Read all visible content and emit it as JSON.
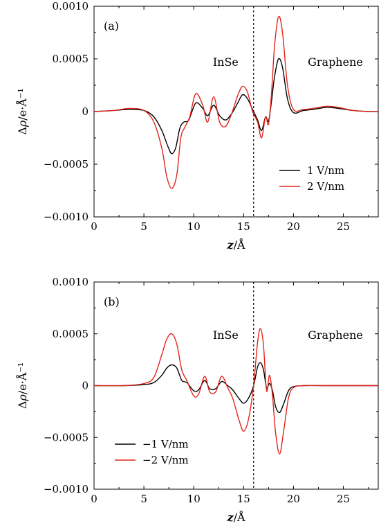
{
  "chart_data": [
    {
      "type": "line",
      "panel_label": "(a)",
      "xlabel": "z/Å",
      "ylabel": "Δρ/e·Å⁻¹",
      "xlim": [
        0,
        28.5
      ],
      "ylim": [
        -0.001,
        0.001
      ],
      "x_ticks": [
        0,
        5,
        10,
        15,
        20,
        25
      ],
      "x_tick_labels": [
        "0",
        "5",
        "10",
        "15",
        "20",
        "25"
      ],
      "y_ticks": [
        -0.001,
        -0.0005,
        0,
        0.0005,
        0.001
      ],
      "y_tick_labels": [
        "−0.0010",
        "−0.0005",
        "0",
        "0.0005",
        "0.0010"
      ],
      "interface_x": 16,
      "region_labels": [
        "InSe",
        "Graphene"
      ],
      "legend_position": "bottom-right",
      "series": [
        {
          "name": "1 V/nm",
          "color": "#000000",
          "x": [
            0,
            2,
            3.5,
            5,
            6,
            6.8,
            7.4,
            7.8,
            8.2,
            8.6,
            9,
            9.5,
            10.2,
            10.9,
            11.4,
            12,
            12.6,
            13.2,
            13.8,
            14.4,
            14.9,
            15.4,
            15.9,
            16.4,
            16.8,
            17.2,
            17.5,
            17.8,
            18.1,
            18.5,
            18.9,
            19.4,
            20,
            21,
            22,
            23.3,
            24.5,
            26,
            27.5,
            28.5
          ],
          "y": [
            0,
            1e-05,
            2e-05,
            1e-05,
            -5e-05,
            -0.00018,
            -0.00033,
            -0.0004,
            -0.00034,
            -0.00016,
            -0.0001,
            -8e-05,
            8e-05,
            3e-05,
            -4e-05,
            6e-05,
            -4e-05,
            -8e-05,
            -2e-05,
            8e-05,
            0.00016,
            0.00012,
            2e-05,
            -8e-05,
            -0.00018,
            -5e-05,
            -9e-05,
            0.0001,
            0.00033,
            0.0005,
            0.00042,
            0.00012,
            -1e-05,
            1e-05,
            2e-05,
            4e-05,
            3e-05,
            1e-05,
            0,
            0
          ]
        },
        {
          "name": "2 V/nm",
          "color": "#e3241b",
          "x": [
            0,
            2,
            3.5,
            5,
            6,
            6.8,
            7.3,
            7.8,
            8.3,
            8.7,
            9.1,
            9.6,
            10.2,
            10.9,
            11.4,
            12,
            12.6,
            13.2,
            13.8,
            14.4,
            14.9,
            15.4,
            15.9,
            16.4,
            16.8,
            17.2,
            17.5,
            17.8,
            18.1,
            18.5,
            18.9,
            19.4,
            20,
            21,
            22,
            23.3,
            24.5,
            26,
            27.5,
            28.5
          ],
          "y": [
            0,
            1e-05,
            3e-05,
            1e-05,
            -0.0001,
            -0.00035,
            -0.00062,
            -0.00073,
            -0.0006,
            -0.00025,
            -0.00015,
            -5e-05,
            0.00017,
            6e-05,
            -0.0001,
            0.00014,
            -0.0001,
            -0.00014,
            -2e-05,
            0.00015,
            0.00024,
            0.00018,
            0,
            -0.0001,
            -0.00025,
            -5e-05,
            -0.00012,
            0.00018,
            0.00062,
            0.0009,
            0.00075,
            0.00025,
            2e-05,
            2e-05,
            3e-05,
            5e-05,
            4e-05,
            1e-05,
            0,
            0
          ]
        }
      ]
    },
    {
      "type": "line",
      "panel_label": "(b)",
      "xlabel": "z/Å",
      "ylabel": "Δρ/e·Å⁻¹",
      "xlim": [
        0,
        28.5
      ],
      "ylim": [
        -0.001,
        0.001
      ],
      "x_ticks": [
        0,
        5,
        10,
        15,
        20,
        25
      ],
      "x_tick_labels": [
        "0",
        "5",
        "10",
        "15",
        "20",
        "25"
      ],
      "y_ticks": [
        -0.001,
        -0.0005,
        0,
        0.0005,
        0.001
      ],
      "y_tick_labels": [
        "−0.0010",
        "−0.0005",
        "0",
        "0.0005",
        "0.0010"
      ],
      "interface_x": 16,
      "region_labels": [
        "InSe",
        "Graphene"
      ],
      "legend_position": "bottom-left",
      "series": [
        {
          "name": "−1 V/nm",
          "color": "#000000",
          "x": [
            0,
            3,
            5,
            6,
            6.8,
            7.3,
            7.8,
            8.3,
            8.8,
            9.3,
            10,
            10.5,
            11.1,
            11.6,
            12.2,
            12.8,
            13.4,
            13.9,
            14.5,
            15,
            15.5,
            16,
            16.4,
            16.7,
            17,
            17.3,
            17.6,
            17.9,
            18.2,
            18.6,
            19,
            19.5,
            20,
            21,
            23,
            25,
            28.5
          ],
          "y": [
            0,
            0,
            1e-05,
            3e-05,
            0.0001,
            0.00017,
            0.0002,
            0.00017,
            5e-05,
            3e-05,
            -5e-05,
            -4e-05,
            5e-05,
            -3e-05,
            -3e-05,
            4e-05,
            0,
            -4e-05,
            -0.00012,
            -0.00017,
            -0.00012,
            0,
            0.00018,
            0.00022,
            0.00015,
            -2e-05,
            2e-05,
            -5e-05,
            -0.0002,
            -0.00026,
            -0.00018,
            -5e-05,
            -1e-05,
            0,
            0,
            0,
            0
          ]
        },
        {
          "name": "−2 V/nm",
          "color": "#e3241b",
          "x": [
            0,
            3,
            5,
            6,
            6.8,
            7.3,
            7.8,
            8.3,
            8.8,
            9.3,
            10,
            10.5,
            11.1,
            11.6,
            12.2,
            12.8,
            13.4,
            13.9,
            14.5,
            15,
            15.5,
            16,
            16.4,
            16.7,
            17,
            17.3,
            17.6,
            17.9,
            18.2,
            18.6,
            19,
            19.5,
            20,
            21,
            23,
            25,
            28.5
          ],
          "y": [
            0,
            0,
            2e-05,
            8e-05,
            0.0003,
            0.00045,
            0.0005,
            0.0004,
            0.00015,
            5e-05,
            -0.0001,
            -8e-05,
            9e-05,
            -6e-05,
            -6e-05,
            9e-05,
            -2e-05,
            -0.00012,
            -0.00032,
            -0.00044,
            -0.00032,
            0,
            0.00042,
            0.00055,
            0.00038,
            -5e-05,
            0.0001,
            -0.0001,
            -0.00045,
            -0.00066,
            -0.00045,
            -0.00012,
            -2e-05,
            0,
            0,
            0,
            0
          ]
        }
      ]
    }
  ]
}
